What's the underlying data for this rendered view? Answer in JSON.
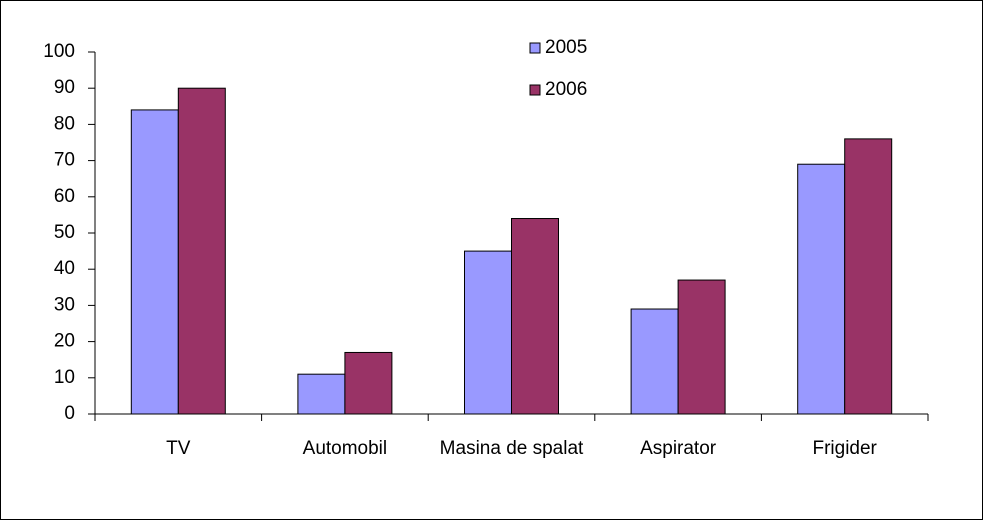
{
  "chart_data": {
    "type": "bar",
    "categories": [
      "TV",
      "Automobil",
      "Masina de spalat",
      "Aspirator",
      "Frigider"
    ],
    "series": [
      {
        "name": "2005",
        "color": "#9999ff",
        "values": [
          84,
          11,
          45,
          29,
          69
        ]
      },
      {
        "name": "2006",
        "color": "#993366",
        "values": [
          90,
          17,
          54,
          37,
          76
        ]
      }
    ],
    "ylim": [
      0,
      100
    ],
    "yticks": [
      0,
      10,
      20,
      30,
      40,
      50,
      60,
      70,
      80,
      90,
      100
    ],
    "grid": false
  }
}
